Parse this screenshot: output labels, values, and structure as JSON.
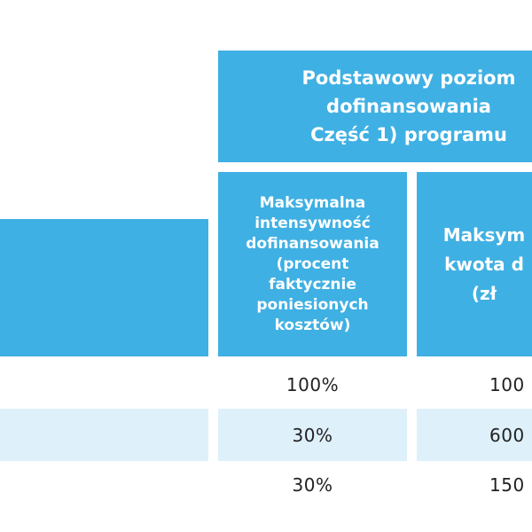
{
  "table": {
    "colors": {
      "header_blue": "#3fb0e3",
      "row_light_blue": "#def0fa",
      "header_text": "#ffffff",
      "body_text": "#222222"
    },
    "group_header": "Podstawowy poziom\ndofinansowania\nCzęść 1) programu",
    "columns": [
      "Maksymalna\nintensywność\ndofinansowania\n(procent\nfaktycznie\nponiesionych\nkosztów)",
      "Maksym\nkwota d\n(zł"
    ],
    "rows": [
      {
        "intensity": "100%",
        "amount": "100"
      },
      {
        "intensity": "30%",
        "amount": "600"
      },
      {
        "intensity": "30%",
        "amount": "150"
      }
    ]
  }
}
